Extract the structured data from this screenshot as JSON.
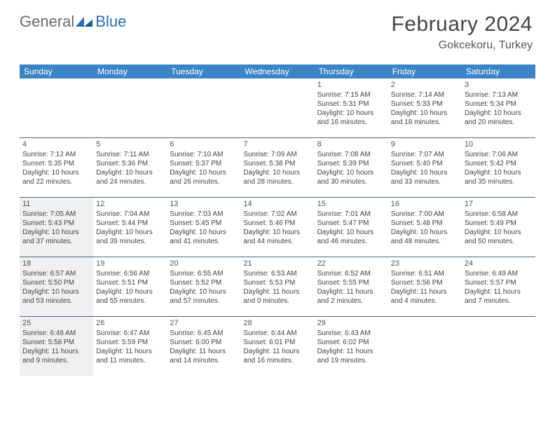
{
  "logo": {
    "text1": "General",
    "text2": "Blue",
    "mark_color": "#2b6fb5"
  },
  "title": "February 2024",
  "location": "Gokcekoru, Turkey",
  "colors": {
    "header_bg": "#3b85c6",
    "header_text": "#ffffff",
    "row_divider": "#4a6a88",
    "shaded_bg": "#eef0f1",
    "text": "#444444"
  },
  "layout": {
    "columns": 7,
    "rows": 5
  },
  "dow": [
    "Sunday",
    "Monday",
    "Tuesday",
    "Wednesday",
    "Thursday",
    "Friday",
    "Saturday"
  ],
  "weeks": [
    [
      {
        "blank": true
      },
      {
        "blank": true
      },
      {
        "blank": true
      },
      {
        "blank": true
      },
      {
        "day": "1",
        "sunrise": "Sunrise: 7:15 AM",
        "sunset": "Sunset: 5:31 PM",
        "dl1": "Daylight: 10 hours",
        "dl2": "and 16 minutes."
      },
      {
        "day": "2",
        "sunrise": "Sunrise: 7:14 AM",
        "sunset": "Sunset: 5:33 PM",
        "dl1": "Daylight: 10 hours",
        "dl2": "and 18 minutes."
      },
      {
        "day": "3",
        "sunrise": "Sunrise: 7:13 AM",
        "sunset": "Sunset: 5:34 PM",
        "dl1": "Daylight: 10 hours",
        "dl2": "and 20 minutes."
      }
    ],
    [
      {
        "day": "4",
        "sunrise": "Sunrise: 7:12 AM",
        "sunset": "Sunset: 5:35 PM",
        "dl1": "Daylight: 10 hours",
        "dl2": "and 22 minutes."
      },
      {
        "day": "5",
        "sunrise": "Sunrise: 7:11 AM",
        "sunset": "Sunset: 5:36 PM",
        "dl1": "Daylight: 10 hours",
        "dl2": "and 24 minutes."
      },
      {
        "day": "6",
        "sunrise": "Sunrise: 7:10 AM",
        "sunset": "Sunset: 5:37 PM",
        "dl1": "Daylight: 10 hours",
        "dl2": "and 26 minutes."
      },
      {
        "day": "7",
        "sunrise": "Sunrise: 7:09 AM",
        "sunset": "Sunset: 5:38 PM",
        "dl1": "Daylight: 10 hours",
        "dl2": "and 28 minutes."
      },
      {
        "day": "8",
        "sunrise": "Sunrise: 7:08 AM",
        "sunset": "Sunset: 5:39 PM",
        "dl1": "Daylight: 10 hours",
        "dl2": "and 30 minutes."
      },
      {
        "day": "9",
        "sunrise": "Sunrise: 7:07 AM",
        "sunset": "Sunset: 5:40 PM",
        "dl1": "Daylight: 10 hours",
        "dl2": "and 33 minutes."
      },
      {
        "day": "10",
        "sunrise": "Sunrise: 7:06 AM",
        "sunset": "Sunset: 5:42 PM",
        "dl1": "Daylight: 10 hours",
        "dl2": "and 35 minutes."
      }
    ],
    [
      {
        "day": "11",
        "shaded": true,
        "sunrise": "Sunrise: 7:05 AM",
        "sunset": "Sunset: 5:43 PM",
        "dl1": "Daylight: 10 hours",
        "dl2": "and 37 minutes."
      },
      {
        "day": "12",
        "sunrise": "Sunrise: 7:04 AM",
        "sunset": "Sunset: 5:44 PM",
        "dl1": "Daylight: 10 hours",
        "dl2": "and 39 minutes."
      },
      {
        "day": "13",
        "sunrise": "Sunrise: 7:03 AM",
        "sunset": "Sunset: 5:45 PM",
        "dl1": "Daylight: 10 hours",
        "dl2": "and 41 minutes."
      },
      {
        "day": "14",
        "sunrise": "Sunrise: 7:02 AM",
        "sunset": "Sunset: 5:46 PM",
        "dl1": "Daylight: 10 hours",
        "dl2": "and 44 minutes."
      },
      {
        "day": "15",
        "sunrise": "Sunrise: 7:01 AM",
        "sunset": "Sunset: 5:47 PM",
        "dl1": "Daylight: 10 hours",
        "dl2": "and 46 minutes."
      },
      {
        "day": "16",
        "sunrise": "Sunrise: 7:00 AM",
        "sunset": "Sunset: 5:48 PM",
        "dl1": "Daylight: 10 hours",
        "dl2": "and 48 minutes."
      },
      {
        "day": "17",
        "sunrise": "Sunrise: 6:58 AM",
        "sunset": "Sunset: 5:49 PM",
        "dl1": "Daylight: 10 hours",
        "dl2": "and 50 minutes."
      }
    ],
    [
      {
        "day": "18",
        "shaded": true,
        "sunrise": "Sunrise: 6:57 AM",
        "sunset": "Sunset: 5:50 PM",
        "dl1": "Daylight: 10 hours",
        "dl2": "and 53 minutes."
      },
      {
        "day": "19",
        "sunrise": "Sunrise: 6:56 AM",
        "sunset": "Sunset: 5:51 PM",
        "dl1": "Daylight: 10 hours",
        "dl2": "and 55 minutes."
      },
      {
        "day": "20",
        "sunrise": "Sunrise: 6:55 AM",
        "sunset": "Sunset: 5:52 PM",
        "dl1": "Daylight: 10 hours",
        "dl2": "and 57 minutes."
      },
      {
        "day": "21",
        "sunrise": "Sunrise: 6:53 AM",
        "sunset": "Sunset: 5:53 PM",
        "dl1": "Daylight: 11 hours",
        "dl2": "and 0 minutes."
      },
      {
        "day": "22",
        "sunrise": "Sunrise: 6:52 AM",
        "sunset": "Sunset: 5:55 PM",
        "dl1": "Daylight: 11 hours",
        "dl2": "and 2 minutes."
      },
      {
        "day": "23",
        "sunrise": "Sunrise: 6:51 AM",
        "sunset": "Sunset: 5:56 PM",
        "dl1": "Daylight: 11 hours",
        "dl2": "and 4 minutes."
      },
      {
        "day": "24",
        "sunrise": "Sunrise: 6:49 AM",
        "sunset": "Sunset: 5:57 PM",
        "dl1": "Daylight: 11 hours",
        "dl2": "and 7 minutes."
      }
    ],
    [
      {
        "day": "25",
        "shaded": true,
        "sunrise": "Sunrise: 6:48 AM",
        "sunset": "Sunset: 5:58 PM",
        "dl1": "Daylight: 11 hours",
        "dl2": "and 9 minutes."
      },
      {
        "day": "26",
        "sunrise": "Sunrise: 6:47 AM",
        "sunset": "Sunset: 5:59 PM",
        "dl1": "Daylight: 11 hours",
        "dl2": "and 11 minutes."
      },
      {
        "day": "27",
        "sunrise": "Sunrise: 6:45 AM",
        "sunset": "Sunset: 6:00 PM",
        "dl1": "Daylight: 11 hours",
        "dl2": "and 14 minutes."
      },
      {
        "day": "28",
        "sunrise": "Sunrise: 6:44 AM",
        "sunset": "Sunset: 6:01 PM",
        "dl1": "Daylight: 11 hours",
        "dl2": "and 16 minutes."
      },
      {
        "day": "29",
        "sunrise": "Sunrise: 6:43 AM",
        "sunset": "Sunset: 6:02 PM",
        "dl1": "Daylight: 11 hours",
        "dl2": "and 19 minutes."
      },
      {
        "blank": true
      },
      {
        "blank": true
      }
    ]
  ]
}
